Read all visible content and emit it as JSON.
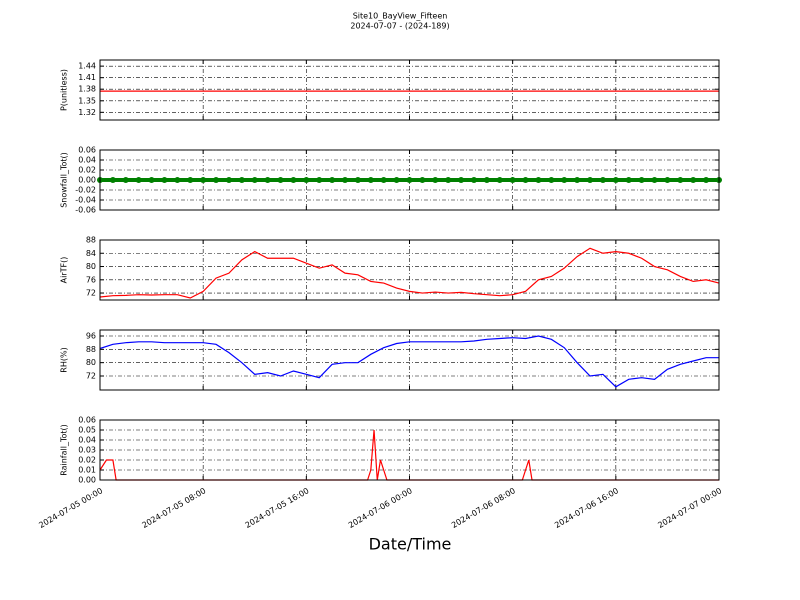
{
  "chart_data": [
    {
      "type": "line",
      "title": "Site10_BayView_Fifteen",
      "subtitle": "2024-07-07 - (2024-189)",
      "ylabel": "P(unitless)",
      "color": "#ff0000",
      "grid": true,
      "x": [
        "2024-07-05 00:00",
        "2024-07-05 01:00",
        "2024-07-05 02:00",
        "2024-07-05 03:00",
        "2024-07-05 04:00",
        "2024-07-05 05:00",
        "2024-07-05 06:00",
        "2024-07-05 07:00",
        "2024-07-05 08:00",
        "2024-07-05 09:00",
        "2024-07-05 10:00",
        "2024-07-05 11:00",
        "2024-07-05 12:00",
        "2024-07-05 13:00",
        "2024-07-05 14:00",
        "2024-07-05 15:00",
        "2024-07-05 16:00",
        "2024-07-05 17:00",
        "2024-07-05 18:00",
        "2024-07-05 19:00",
        "2024-07-05 20:00",
        "2024-07-05 21:00",
        "2024-07-05 22:00",
        "2024-07-05 23:00",
        "2024-07-06 00:00",
        "2024-07-06 01:00",
        "2024-07-06 02:00",
        "2024-07-06 03:00",
        "2024-07-06 04:00",
        "2024-07-06 05:00",
        "2024-07-06 06:00",
        "2024-07-06 07:00",
        "2024-07-06 08:00",
        "2024-07-06 09:00",
        "2024-07-06 10:00",
        "2024-07-06 11:00",
        "2024-07-06 12:00",
        "2024-07-06 13:00",
        "2024-07-06 14:00",
        "2024-07-06 15:00",
        "2024-07-06 16:00",
        "2024-07-06 17:00",
        "2024-07-06 18:00",
        "2024-07-06 19:00",
        "2024-07-06 20:00",
        "2024-07-06 21:00",
        "2024-07-06 22:00",
        "2024-07-06 23:00",
        "2024-07-07 00:00"
      ],
      "values": [
        1.375,
        1.375,
        1.375,
        1.375,
        1.375,
        1.375,
        1.375,
        1.375,
        1.375,
        1.375,
        1.375,
        1.375,
        1.375,
        1.375,
        1.375,
        1.375,
        1.375,
        1.375,
        1.375,
        1.375,
        1.375,
        1.375,
        1.375,
        1.375,
        1.375,
        1.375,
        1.375,
        1.375,
        1.375,
        1.375,
        1.375,
        1.375,
        1.375,
        1.375,
        1.375,
        1.375,
        1.375,
        1.375,
        1.375,
        1.375,
        1.375,
        1.375,
        1.375,
        1.375,
        1.375,
        1.375,
        1.375,
        1.375,
        1.375
      ],
      "ylim": [
        1.3,
        1.456
      ],
      "yticks": [
        1.32,
        1.35,
        1.38,
        1.41,
        1.44
      ]
    },
    {
      "type": "line",
      "ylabel": "Snowfall_Tot()",
      "color": "#008000",
      "marker": true,
      "grid": true,
      "x": [
        "2024-07-05 00:00",
        "2024-07-05 01:00",
        "2024-07-05 02:00",
        "2024-07-05 03:00",
        "2024-07-05 04:00",
        "2024-07-05 05:00",
        "2024-07-05 06:00",
        "2024-07-05 07:00",
        "2024-07-05 08:00",
        "2024-07-05 09:00",
        "2024-07-05 10:00",
        "2024-07-05 11:00",
        "2024-07-05 12:00",
        "2024-07-05 13:00",
        "2024-07-05 14:00",
        "2024-07-05 15:00",
        "2024-07-05 16:00",
        "2024-07-05 17:00",
        "2024-07-05 18:00",
        "2024-07-05 19:00",
        "2024-07-05 20:00",
        "2024-07-05 21:00",
        "2024-07-05 22:00",
        "2024-07-05 23:00",
        "2024-07-06 00:00",
        "2024-07-06 01:00",
        "2024-07-06 02:00",
        "2024-07-06 03:00",
        "2024-07-06 04:00",
        "2024-07-06 05:00",
        "2024-07-06 06:00",
        "2024-07-06 07:00",
        "2024-07-06 08:00",
        "2024-07-06 09:00",
        "2024-07-06 10:00",
        "2024-07-06 11:00",
        "2024-07-06 12:00",
        "2024-07-06 13:00",
        "2024-07-06 14:00",
        "2024-07-06 15:00",
        "2024-07-06 16:00",
        "2024-07-06 17:00",
        "2024-07-06 18:00",
        "2024-07-06 19:00",
        "2024-07-06 20:00",
        "2024-07-06 21:00",
        "2024-07-06 22:00",
        "2024-07-06 23:00",
        "2024-07-07 00:00"
      ],
      "values": [
        0,
        0,
        0,
        0,
        0,
        0,
        0,
        0,
        0,
        0,
        0,
        0,
        0,
        0,
        0,
        0,
        0,
        0,
        0,
        0,
        0,
        0,
        0,
        0,
        0,
        0,
        0,
        0,
        0,
        0,
        0,
        0,
        0,
        0,
        0,
        0,
        0,
        0,
        0,
        0,
        0,
        0,
        0,
        0,
        0,
        0,
        0,
        0,
        0
      ],
      "ylim": [
        -0.06,
        0.06
      ],
      "yticks": [
        -0.06,
        -0.04,
        -0.02,
        {
          "value": 0,
          "label": "0.00"
        },
        0.02,
        0.04,
        0.06
      ]
    },
    {
      "type": "line",
      "ylabel": "AirTF()",
      "color": "#ff0000",
      "grid": true,
      "x": [
        "2024-07-05 00:00",
        "2024-07-05 01:00",
        "2024-07-05 02:00",
        "2024-07-05 03:00",
        "2024-07-05 04:00",
        "2024-07-05 05:00",
        "2024-07-05 06:00",
        "2024-07-05 07:00",
        "2024-07-05 08:00",
        "2024-07-05 09:00",
        "2024-07-05 10:00",
        "2024-07-05 11:00",
        "2024-07-05 12:00",
        "2024-07-05 13:00",
        "2024-07-05 14:00",
        "2024-07-05 15:00",
        "2024-07-05 16:00",
        "2024-07-05 17:00",
        "2024-07-05 18:00",
        "2024-07-05 19:00",
        "2024-07-05 20:00",
        "2024-07-05 21:00",
        "2024-07-05 22:00",
        "2024-07-05 23:00",
        "2024-07-06 00:00",
        "2024-07-06 01:00",
        "2024-07-06 02:00",
        "2024-07-06 03:00",
        "2024-07-06 04:00",
        "2024-07-06 05:00",
        "2024-07-06 06:00",
        "2024-07-06 07:00",
        "2024-07-06 08:00",
        "2024-07-06 09:00",
        "2024-07-06 10:00",
        "2024-07-06 11:00",
        "2024-07-06 12:00",
        "2024-07-06 13:00",
        "2024-07-06 14:00",
        "2024-07-06 15:00",
        "2024-07-06 16:00",
        "2024-07-06 17:00",
        "2024-07-06 18:00",
        "2024-07-06 19:00",
        "2024-07-06 20:00",
        "2024-07-06 21:00",
        "2024-07-06 22:00",
        "2024-07-06 23:00",
        "2024-07-07 00:00"
      ],
      "values": [
        70.8,
        71.2,
        71.3,
        71.5,
        71.4,
        71.5,
        71.5,
        70.5,
        72.5,
        76.5,
        78,
        82,
        84.5,
        82.5,
        82.5,
        82.5,
        81,
        79.5,
        80.5,
        78,
        77.5,
        75.5,
        75,
        73.5,
        72.5,
        72,
        72.3,
        72,
        72.2,
        71.8,
        71.5,
        71.2,
        71.5,
        72.5,
        76,
        77,
        79.5,
        83,
        85.5,
        84,
        84.5,
        84,
        82.5,
        80,
        79,
        77,
        75.5,
        76,
        75
      ],
      "ylim": [
        69.9,
        88
      ],
      "yticks": [
        72,
        76,
        80,
        84,
        88
      ]
    },
    {
      "type": "line",
      "ylabel": "RH(%)",
      "color": "#0000ff",
      "grid": true,
      "x": [
        "2024-07-05 00:00",
        "2024-07-05 01:00",
        "2024-07-05 02:00",
        "2024-07-05 03:00",
        "2024-07-05 04:00",
        "2024-07-05 05:00",
        "2024-07-05 06:00",
        "2024-07-05 07:00",
        "2024-07-05 08:00",
        "2024-07-05 09:00",
        "2024-07-05 10:00",
        "2024-07-05 11:00",
        "2024-07-05 12:00",
        "2024-07-05 13:00",
        "2024-07-05 14:00",
        "2024-07-05 15:00",
        "2024-07-05 16:00",
        "2024-07-05 17:00",
        "2024-07-05 18:00",
        "2024-07-05 19:00",
        "2024-07-05 20:00",
        "2024-07-05 21:00",
        "2024-07-05 22:00",
        "2024-07-05 23:00",
        "2024-07-06 00:00",
        "2024-07-06 01:00",
        "2024-07-06 02:00",
        "2024-07-06 03:00",
        "2024-07-06 04:00",
        "2024-07-06 05:00",
        "2024-07-06 06:00",
        "2024-07-06 07:00",
        "2024-07-06 08:00",
        "2024-07-06 09:00",
        "2024-07-06 10:00",
        "2024-07-06 11:00",
        "2024-07-06 12:00",
        "2024-07-06 13:00",
        "2024-07-06 14:00",
        "2024-07-06 15:00",
        "2024-07-06 16:00",
        "2024-07-06 17:00",
        "2024-07-06 18:00",
        "2024-07-06 19:00",
        "2024-07-06 20:00",
        "2024-07-06 21:00",
        "2024-07-06 22:00",
        "2024-07-06 23:00",
        "2024-07-07 00:00"
      ],
      "values": [
        88.5,
        91,
        92,
        92.5,
        92.5,
        92,
        92,
        92,
        92,
        91,
        86,
        80,
        73,
        74,
        72,
        75,
        73,
        71,
        79,
        80,
        80,
        85,
        89,
        91.5,
        92.5,
        92.5,
        92.5,
        92.5,
        92.5,
        93,
        94,
        94.5,
        95,
        94.5,
        96,
        94,
        89,
        80,
        72,
        73,
        65.5,
        70,
        71,
        70,
        76,
        79,
        81,
        83,
        83
      ],
      "ylim": [
        63.6,
        99.6
      ],
      "yticks": [
        72,
        80,
        88,
        96
      ]
    },
    {
      "type": "line",
      "ylabel": "Rainfall_Tot()",
      "xlabel": "Date/Time",
      "color": "#ff0000",
      "grid": true,
      "x": [
        "2024-07-05 00:00",
        "2024-07-05 00:30",
        "2024-07-05 01:00",
        "2024-07-05 01:15",
        "2024-07-05 20:45",
        "2024-07-05 21:00",
        "2024-07-05 21:15",
        "2024-07-05 21:30",
        "2024-07-05 21:45",
        "2024-07-05 22:15",
        "2024-07-06 08:45",
        "2024-07-06 09:15",
        "2024-07-06 09:30",
        "2024-07-07 00:00"
      ],
      "values": [
        0.01,
        0.02,
        0.02,
        0,
        0,
        0.01,
        0.05,
        0,
        0.02,
        0,
        0,
        0.02,
        0,
        0
      ],
      "ylim": [
        0,
        0.06
      ],
      "yticks": [
        {
          "value": 0,
          "label": "0.00"
        },
        0.01,
        0.02,
        0.03,
        0.04,
        0.05,
        0.06
      ],
      "xlim": [
        "2024-07-05 00:00",
        "2024-07-07 00:00"
      ],
      "xticks": [
        "2024-07-05 00:00",
        "2024-07-05 08:00",
        "2024-07-05 16:00",
        "2024-07-06 00:00",
        "2024-07-06 08:00",
        "2024-07-06 16:00",
        "2024-07-07 00:00"
      ]
    }
  ]
}
